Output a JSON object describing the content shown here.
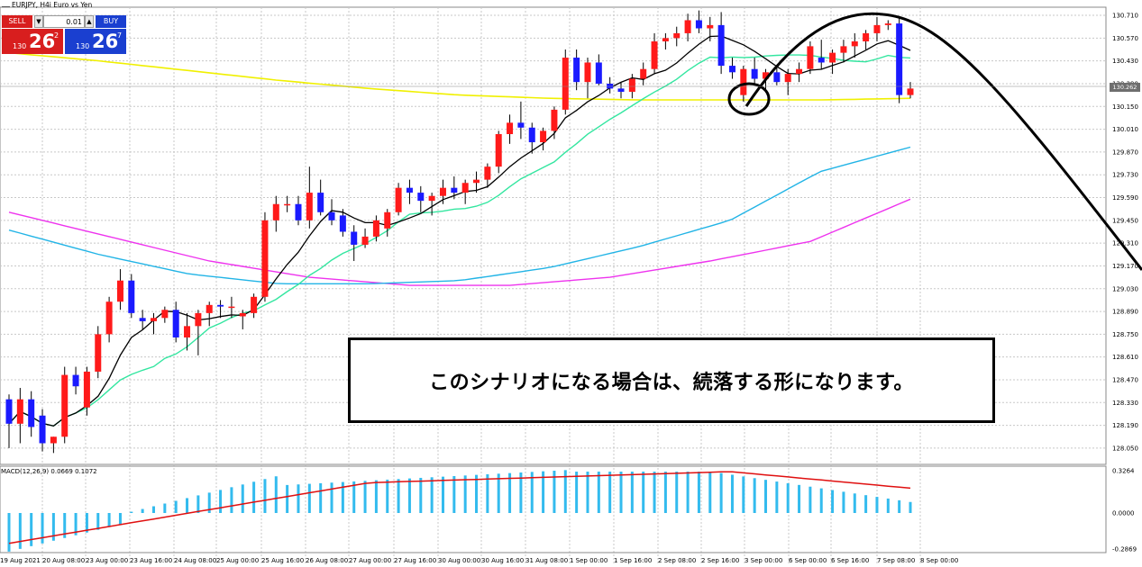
{
  "header": {
    "symbol": "EURJPY",
    "timeframe": "H4",
    "description": "Euro vs Yen",
    "symbol_line": "EURJPY, H4i  Euro vs Yen"
  },
  "trade_panel": {
    "sell_label": "SELL",
    "buy_label": "BUY",
    "volume": "0.01",
    "down_arrow": "▼",
    "up_arrow": "▲",
    "sell_prefix": "130",
    "sell_big": "26",
    "sell_pip": "2",
    "buy_prefix": "130",
    "buy_big": "26",
    "buy_pip": "7"
  },
  "callout": {
    "text": "このシナリオになる場合は、続落する形になります。"
  },
  "current_price_tag": "130.262",
  "macd_label": "MACD(12,26,9) 0.0669 0.1072",
  "colors": {
    "bull": "#ff1a1a",
    "bear": "#1a1aff",
    "ma_fast": "#000000",
    "ma_mid": "#33e6a0",
    "ma_slow": "#22b4e6",
    "ma_slower": "#ee33ee",
    "ma_longest": "#f0f000",
    "macd_hist": "#33bbee",
    "macd_signal": "#e01010",
    "grid": "#c8c8c8"
  },
  "chart_data": {
    "type": "candlestick",
    "y_ticks": [
      "130.710",
      "130.570",
      "130.430",
      "130.290",
      "130.150",
      "130.010",
      "129.870",
      "129.730",
      "129.590",
      "129.450",
      "129.310",
      "129.170",
      "129.030",
      "128.890",
      "128.750",
      "128.610",
      "128.470",
      "128.330",
      "128.190",
      "128.050"
    ],
    "ylim": [
      127.95,
      130.76
    ],
    "x_ticks": [
      "19 Aug 2021",
      "20 Aug 08:00",
      "23 Aug 00:00",
      "23 Aug 16:00",
      "24 Aug 08:00",
      "25 Aug 00:00",
      "25 Aug 16:00",
      "26 Aug 08:00",
      "27 Aug 00:00",
      "27 Aug 16:00",
      "30 Aug 00:00",
      "30 Aug 16:00",
      "31 Aug 08:00",
      "1 Sep 00:00",
      "1 Sep 16:00",
      "2 Sep 08:00",
      "2 Sep 16:00",
      "3 Sep 00:00",
      "6 Sep 00:00",
      "6 Sep 16:00",
      "7 Sep 08:00",
      "8 Sep 00:00"
    ],
    "candles": [
      [
        128.35,
        128.38,
        128.05,
        128.2
      ],
      [
        128.2,
        128.42,
        128.08,
        128.35
      ],
      [
        128.35,
        128.4,
        128.12,
        128.18
      ],
      [
        128.25,
        128.29,
        128.03,
        128.08
      ],
      [
        128.08,
        128.12,
        128.02,
        128.12
      ],
      [
        128.12,
        128.55,
        128.08,
        128.5
      ],
      [
        128.5,
        128.55,
        128.38,
        128.43
      ],
      [
        128.3,
        128.55,
        128.25,
        128.52
      ],
      [
        128.52,
        128.8,
        128.48,
        128.75
      ],
      [
        128.75,
        128.98,
        128.7,
        128.95
      ],
      [
        128.95,
        129.15,
        128.9,
        129.08
      ],
      [
        129.08,
        129.12,
        128.85,
        128.88
      ],
      [
        128.85,
        128.9,
        128.78,
        128.83
      ],
      [
        128.83,
        128.88,
        128.75,
        128.85
      ],
      [
        128.85,
        128.92,
        128.82,
        128.9
      ],
      [
        128.9,
        128.95,
        128.7,
        128.73
      ],
      [
        128.73,
        128.88,
        128.65,
        128.8
      ],
      [
        128.8,
        128.9,
        128.62,
        128.88
      ],
      [
        128.88,
        128.95,
        128.8,
        128.93
      ],
      [
        128.93,
        128.96,
        128.85,
        128.92
      ],
      [
        128.92,
        128.98,
        128.85,
        128.92
      ],
      [
        128.86,
        128.9,
        128.78,
        128.88
      ],
      [
        128.88,
        129.0,
        128.85,
        128.98
      ],
      [
        128.98,
        129.5,
        128.95,
        129.45
      ],
      [
        129.45,
        129.6,
        129.38,
        129.55
      ],
      [
        129.55,
        129.6,
        129.5,
        129.55
      ],
      [
        129.55,
        129.6,
        129.42,
        129.45
      ],
      [
        129.45,
        129.78,
        129.4,
        129.62
      ],
      [
        129.62,
        129.7,
        129.48,
        129.5
      ],
      [
        129.5,
        129.58,
        129.42,
        129.45
      ],
      [
        129.48,
        129.52,
        129.35,
        129.38
      ],
      [
        129.38,
        129.42,
        129.2,
        129.3
      ],
      [
        129.3,
        129.4,
        129.28,
        129.35
      ],
      [
        129.35,
        129.48,
        129.32,
        129.45
      ],
      [
        129.4,
        129.52,
        129.35,
        129.5
      ],
      [
        129.5,
        129.68,
        129.48,
        129.65
      ],
      [
        129.65,
        129.7,
        129.55,
        129.62
      ],
      [
        129.62,
        129.66,
        129.5,
        129.57
      ],
      [
        129.57,
        129.62,
        129.48,
        129.6
      ],
      [
        129.6,
        129.7,
        129.55,
        129.65
      ],
      [
        129.65,
        129.72,
        129.58,
        129.62
      ],
      [
        129.62,
        129.7,
        129.55,
        129.68
      ],
      [
        129.68,
        129.75,
        129.62,
        129.7
      ],
      [
        129.7,
        129.8,
        129.65,
        129.78
      ],
      [
        129.78,
        130.0,
        129.74,
        129.98
      ],
      [
        129.98,
        130.1,
        129.92,
        130.05
      ],
      [
        130.05,
        130.18,
        129.95,
        130.02
      ],
      [
        130.02,
        130.05,
        129.86,
        129.93
      ],
      [
        129.93,
        130.02,
        129.88,
        130.0
      ],
      [
        130.0,
        130.15,
        129.95,
        130.13
      ],
      [
        130.13,
        130.5,
        130.1,
        130.45
      ],
      [
        130.45,
        130.5,
        130.25,
        130.3
      ],
      [
        130.3,
        130.45,
        130.2,
        130.42
      ],
      [
        130.42,
        130.47,
        130.28,
        130.29
      ],
      [
        130.29,
        130.33,
        130.23,
        130.26
      ],
      [
        130.26,
        130.3,
        130.2,
        130.24
      ],
      [
        130.24,
        130.35,
        130.2,
        130.32
      ],
      [
        130.32,
        130.42,
        130.28,
        130.38
      ],
      [
        130.38,
        130.6,
        130.35,
        130.55
      ],
      [
        130.55,
        130.6,
        130.5,
        130.57
      ],
      [
        130.57,
        130.64,
        130.52,
        130.6
      ],
      [
        130.6,
        130.72,
        130.55,
        130.68
      ],
      [
        130.68,
        130.74,
        130.6,
        130.63
      ],
      [
        130.63,
        130.7,
        130.55,
        130.65
      ],
      [
        130.65,
        130.73,
        130.35,
        130.4
      ],
      [
        130.4,
        130.45,
        130.32,
        130.36
      ],
      [
        130.22,
        130.4,
        130.18,
        130.38
      ],
      [
        130.38,
        130.45,
        130.28,
        130.32
      ],
      [
        130.32,
        130.38,
        130.25,
        130.36
      ],
      [
        130.36,
        130.4,
        130.28,
        130.3
      ],
      [
        130.3,
        130.38,
        130.22,
        130.35
      ],
      [
        130.35,
        130.42,
        130.3,
        130.38
      ],
      [
        130.38,
        130.55,
        130.35,
        130.52
      ],
      [
        130.45,
        130.56,
        130.38,
        130.42
      ],
      [
        130.42,
        130.5,
        130.35,
        130.48
      ],
      [
        130.48,
        130.56,
        130.42,
        130.52
      ],
      [
        130.52,
        130.6,
        130.45,
        130.55
      ],
      [
        130.55,
        130.62,
        130.5,
        130.6
      ],
      [
        130.6,
        130.7,
        130.55,
        130.65
      ],
      [
        130.65,
        130.68,
        130.62,
        130.66
      ],
      [
        130.66,
        130.7,
        130.17,
        130.22
      ],
      [
        130.22,
        130.3,
        130.2,
        130.26
      ]
    ]
  }
}
